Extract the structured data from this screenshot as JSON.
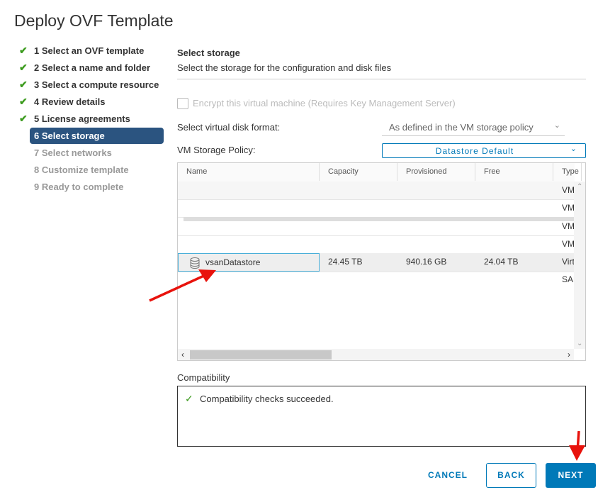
{
  "title": "Deploy OVF Template",
  "steps": [
    {
      "label": "1 Select an OVF template",
      "state": "done"
    },
    {
      "label": "2 Select a name and folder",
      "state": "done"
    },
    {
      "label": "3 Select a compute resource",
      "state": "done"
    },
    {
      "label": "4 Review details",
      "state": "done"
    },
    {
      "label": "5 License agreements",
      "state": "done"
    },
    {
      "label": "6 Select storage",
      "state": "active"
    },
    {
      "label": "7 Select networks",
      "state": "pending"
    },
    {
      "label": "8 Customize template",
      "state": "pending"
    },
    {
      "label": "9 Ready to complete",
      "state": "pending"
    }
  ],
  "main": {
    "heading": "Select storage",
    "subheading": "Select the storage for the configuration and disk files",
    "encrypt_label": "Encrypt this virtual machine (Requires Key Management Server)",
    "disk_format_label": "Select virtual disk format:",
    "disk_format_value": "As defined in the VM storage policy",
    "policy_label": "VM Storage Policy:",
    "policy_value": "Datastore Default",
    "table": {
      "columns": [
        "Name",
        "Capacity",
        "Provisioned",
        "Free",
        "Type"
      ],
      "blurred_rows_type": [
        "VM",
        "VM",
        "VM",
        "VM"
      ],
      "selected_row": {
        "name": "vsanDatastore",
        "capacity": "24.45 TB",
        "provisioned": "940.16 GB",
        "free": "24.04 TB",
        "type": "Virtual SAN"
      }
    },
    "compat_label": "Compatibility",
    "compat_message": "Compatibility checks succeeded."
  },
  "buttons": {
    "cancel": "CANCEL",
    "back": "BACK",
    "next": "NEXT"
  },
  "colors": {
    "accent": "#0079b8",
    "active_step": "#2b5480",
    "check": "#3c9b1e",
    "arrow": "#e8120c"
  }
}
